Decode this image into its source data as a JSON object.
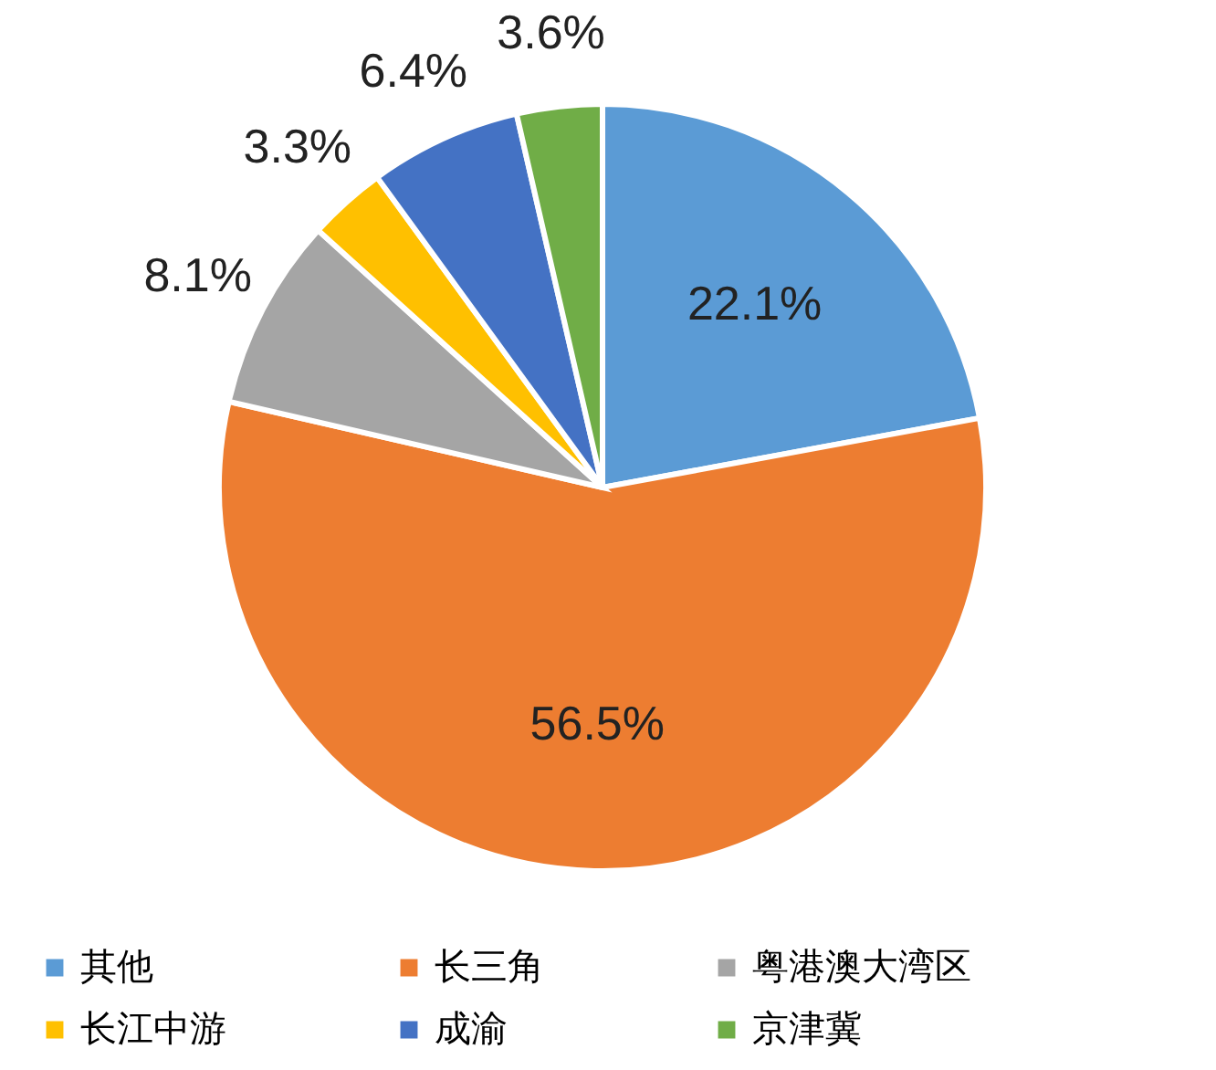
{
  "chart_data": {
    "type": "pie",
    "categories": [
      "其他",
      "长三角",
      "粤港澳大湾区",
      "长江中游",
      "成渝",
      "京津冀"
    ],
    "values": [
      22.1,
      56.5,
      8.1,
      3.3,
      6.4,
      3.6
    ],
    "colors": [
      "#5b9bd5",
      "#ed7d31",
      "#a5a5a5",
      "#ffc000",
      "#4472c4",
      "#70ad47"
    ],
    "value_labels": [
      "22.1%",
      "56.5%",
      "8.1%",
      "3.3%",
      "6.4%",
      "3.6%"
    ],
    "legend": "bottom"
  }
}
